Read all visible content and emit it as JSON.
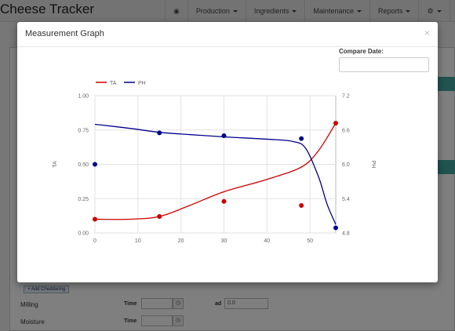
{
  "app": {
    "title": "Cheese Tracker",
    "nav": [
      {
        "label": "",
        "icon": "dashboard-icon"
      },
      {
        "label": "Production",
        "dropdown": true
      },
      {
        "label": "Ingredients",
        "dropdown": true
      },
      {
        "label": "Maintenance",
        "dropdown": true
      },
      {
        "label": "Reports",
        "dropdown": true
      },
      {
        "label": "",
        "icon": "gear-icon",
        "dropdown": true
      },
      {
        "label": "",
        "icon": "user-icon",
        "dropdown": true
      }
    ]
  },
  "background": {
    "add_cheddaring_label": "+ Add Cheddaring",
    "rows": [
      {
        "label": "Milling",
        "time_label": "Time",
        "ad_label": "ad",
        "ad_value": "0.0"
      },
      {
        "label": "Moisture",
        "time_label": "Time"
      }
    ]
  },
  "modal": {
    "title": "Measurement Graph",
    "close_glyph": "×",
    "compare_label": "Compare Date:",
    "compare_value": ""
  },
  "chart_data": {
    "type": "line",
    "title": "",
    "legend": [
      {
        "name": "TA",
        "color": "#cc0000"
      },
      {
        "name": "PH",
        "color": "#00008b"
      }
    ],
    "legend_position": "top-left",
    "xlabel": "",
    "ylabel_left": "TA",
    "ylabel_right": "PH",
    "x_ticks": [
      "0",
      "10",
      "20",
      "30",
      "40",
      "50"
    ],
    "y_left_ticks": [
      "0.00",
      "0.25",
      "0.50",
      "0.75",
      "1.00"
    ],
    "y_right_ticks": [
      "4.8",
      "5.4",
      "6.0",
      "6.6",
      "7.2"
    ],
    "xlim": [
      0,
      56
    ],
    "ylim_left": [
      0,
      1
    ],
    "ylim_right": [
      4.8,
      7.2
    ],
    "grid": true,
    "series": [
      {
        "name": "TA",
        "axis": "left",
        "color": "#cc0000",
        "points": [
          [
            0,
            0.1
          ],
          [
            15,
            0.12
          ],
          [
            30,
            0.23
          ],
          [
            48,
            0.2
          ],
          [
            56,
            0.8
          ]
        ],
        "curve": [
          [
            0,
            0.1
          ],
          [
            8,
            0.1
          ],
          [
            15,
            0.12
          ],
          [
            22,
            0.2
          ],
          [
            30,
            0.3
          ],
          [
            40,
            0.39
          ],
          [
            48,
            0.48
          ],
          [
            52,
            0.6
          ],
          [
            56,
            0.8
          ]
        ]
      },
      {
        "name": "PH",
        "axis": "right",
        "color": "#00008b",
        "points": [
          [
            0,
            6.0
          ],
          [
            15,
            6.55
          ],
          [
            30,
            6.5
          ],
          [
            48,
            6.45
          ],
          [
            56,
            4.89
          ]
        ],
        "curve": [
          [
            0,
            6.7
          ],
          [
            8,
            6.63
          ],
          [
            15,
            6.56
          ],
          [
            22,
            6.52
          ],
          [
            30,
            6.48
          ],
          [
            40,
            6.44
          ],
          [
            46,
            6.4
          ],
          [
            49,
            6.28
          ],
          [
            52,
            5.78
          ],
          [
            54,
            5.3
          ],
          [
            56,
            4.95
          ]
        ]
      }
    ]
  }
}
